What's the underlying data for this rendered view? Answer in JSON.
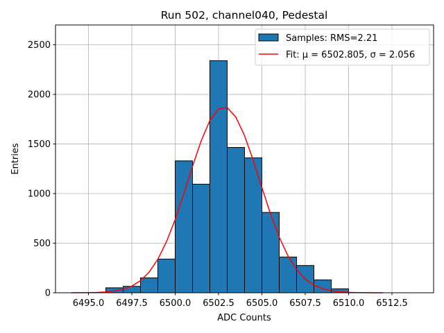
{
  "chart_data": {
    "type": "histogram",
    "title": "Run 502, channel040, Pedestal",
    "xlabel": "ADC Counts",
    "ylabel": "Entries",
    "bins": [
      6496,
      6497,
      6498,
      6499,
      6500,
      6501,
      6502,
      6503,
      6504,
      6505,
      6506,
      6507,
      6508,
      6509,
      6510
    ],
    "series": [
      {
        "name": "Samples: RMS=2.21",
        "type": "histogram",
        "color": "#1f77b4",
        "edgecolor": "#000000",
        "values": [
          50,
          65,
          150,
          340,
          1330,
          1095,
          2340,
          1465,
          1360,
          810,
          360,
          275,
          130,
          40
        ]
      },
      {
        "name": "Fit: μ = 6502.805, σ = 2.056",
        "type": "line",
        "color": "#ff0000",
        "x": [
          6494,
          6494.5,
          6495,
          6495.5,
          6496,
          6496.5,
          6497,
          6497.5,
          6498,
          6498.5,
          6499,
          6499.5,
          6500,
          6500.5,
          6501,
          6501.5,
          6502,
          6502.5,
          6503,
          6503.5,
          6504,
          6504.5,
          6505,
          6505.5,
          6506,
          6506.5,
          6507,
          6507.5,
          6508,
          6508.5,
          6509,
          6509.5,
          6510,
          6510.5,
          6511,
          6511.5,
          6512
        ],
        "values": [
          0.2,
          0.5,
          1.4,
          3.4,
          7.8,
          17,
          34.8,
          67.2,
          122,
          209,
          338,
          515,
          739,
          1000,
          1275,
          1533,
          1737,
          1854,
          1867,
          1771,
          1584,
          1335,
          1060,
          794,
          560,
          373,
          234,
          138,
          77,
          40.5,
          20,
          9.3,
          4.1,
          1.7,
          0.7,
          0.2,
          0.1
        ]
      }
    ],
    "xlim": [
      6493.1,
      6514.9
    ],
    "ylim": [
      0,
      2700
    ],
    "xticks": [
      {
        "value": 6495,
        "label": "6495.0"
      },
      {
        "value": 6497.5,
        "label": "6497.5"
      },
      {
        "value": 6500,
        "label": "6500.0"
      },
      {
        "value": 6502.5,
        "label": "6502.5"
      },
      {
        "value": 6505,
        "label": "6505.0"
      },
      {
        "value": 6507.5,
        "label": "6507.5"
      },
      {
        "value": 6510,
        "label": "6510.0"
      },
      {
        "value": 6512.5,
        "label": "6512.5"
      }
    ],
    "yticks": [
      0,
      500,
      1000,
      1500,
      2000,
      2500
    ],
    "grid": true,
    "legend": "upper right"
  }
}
